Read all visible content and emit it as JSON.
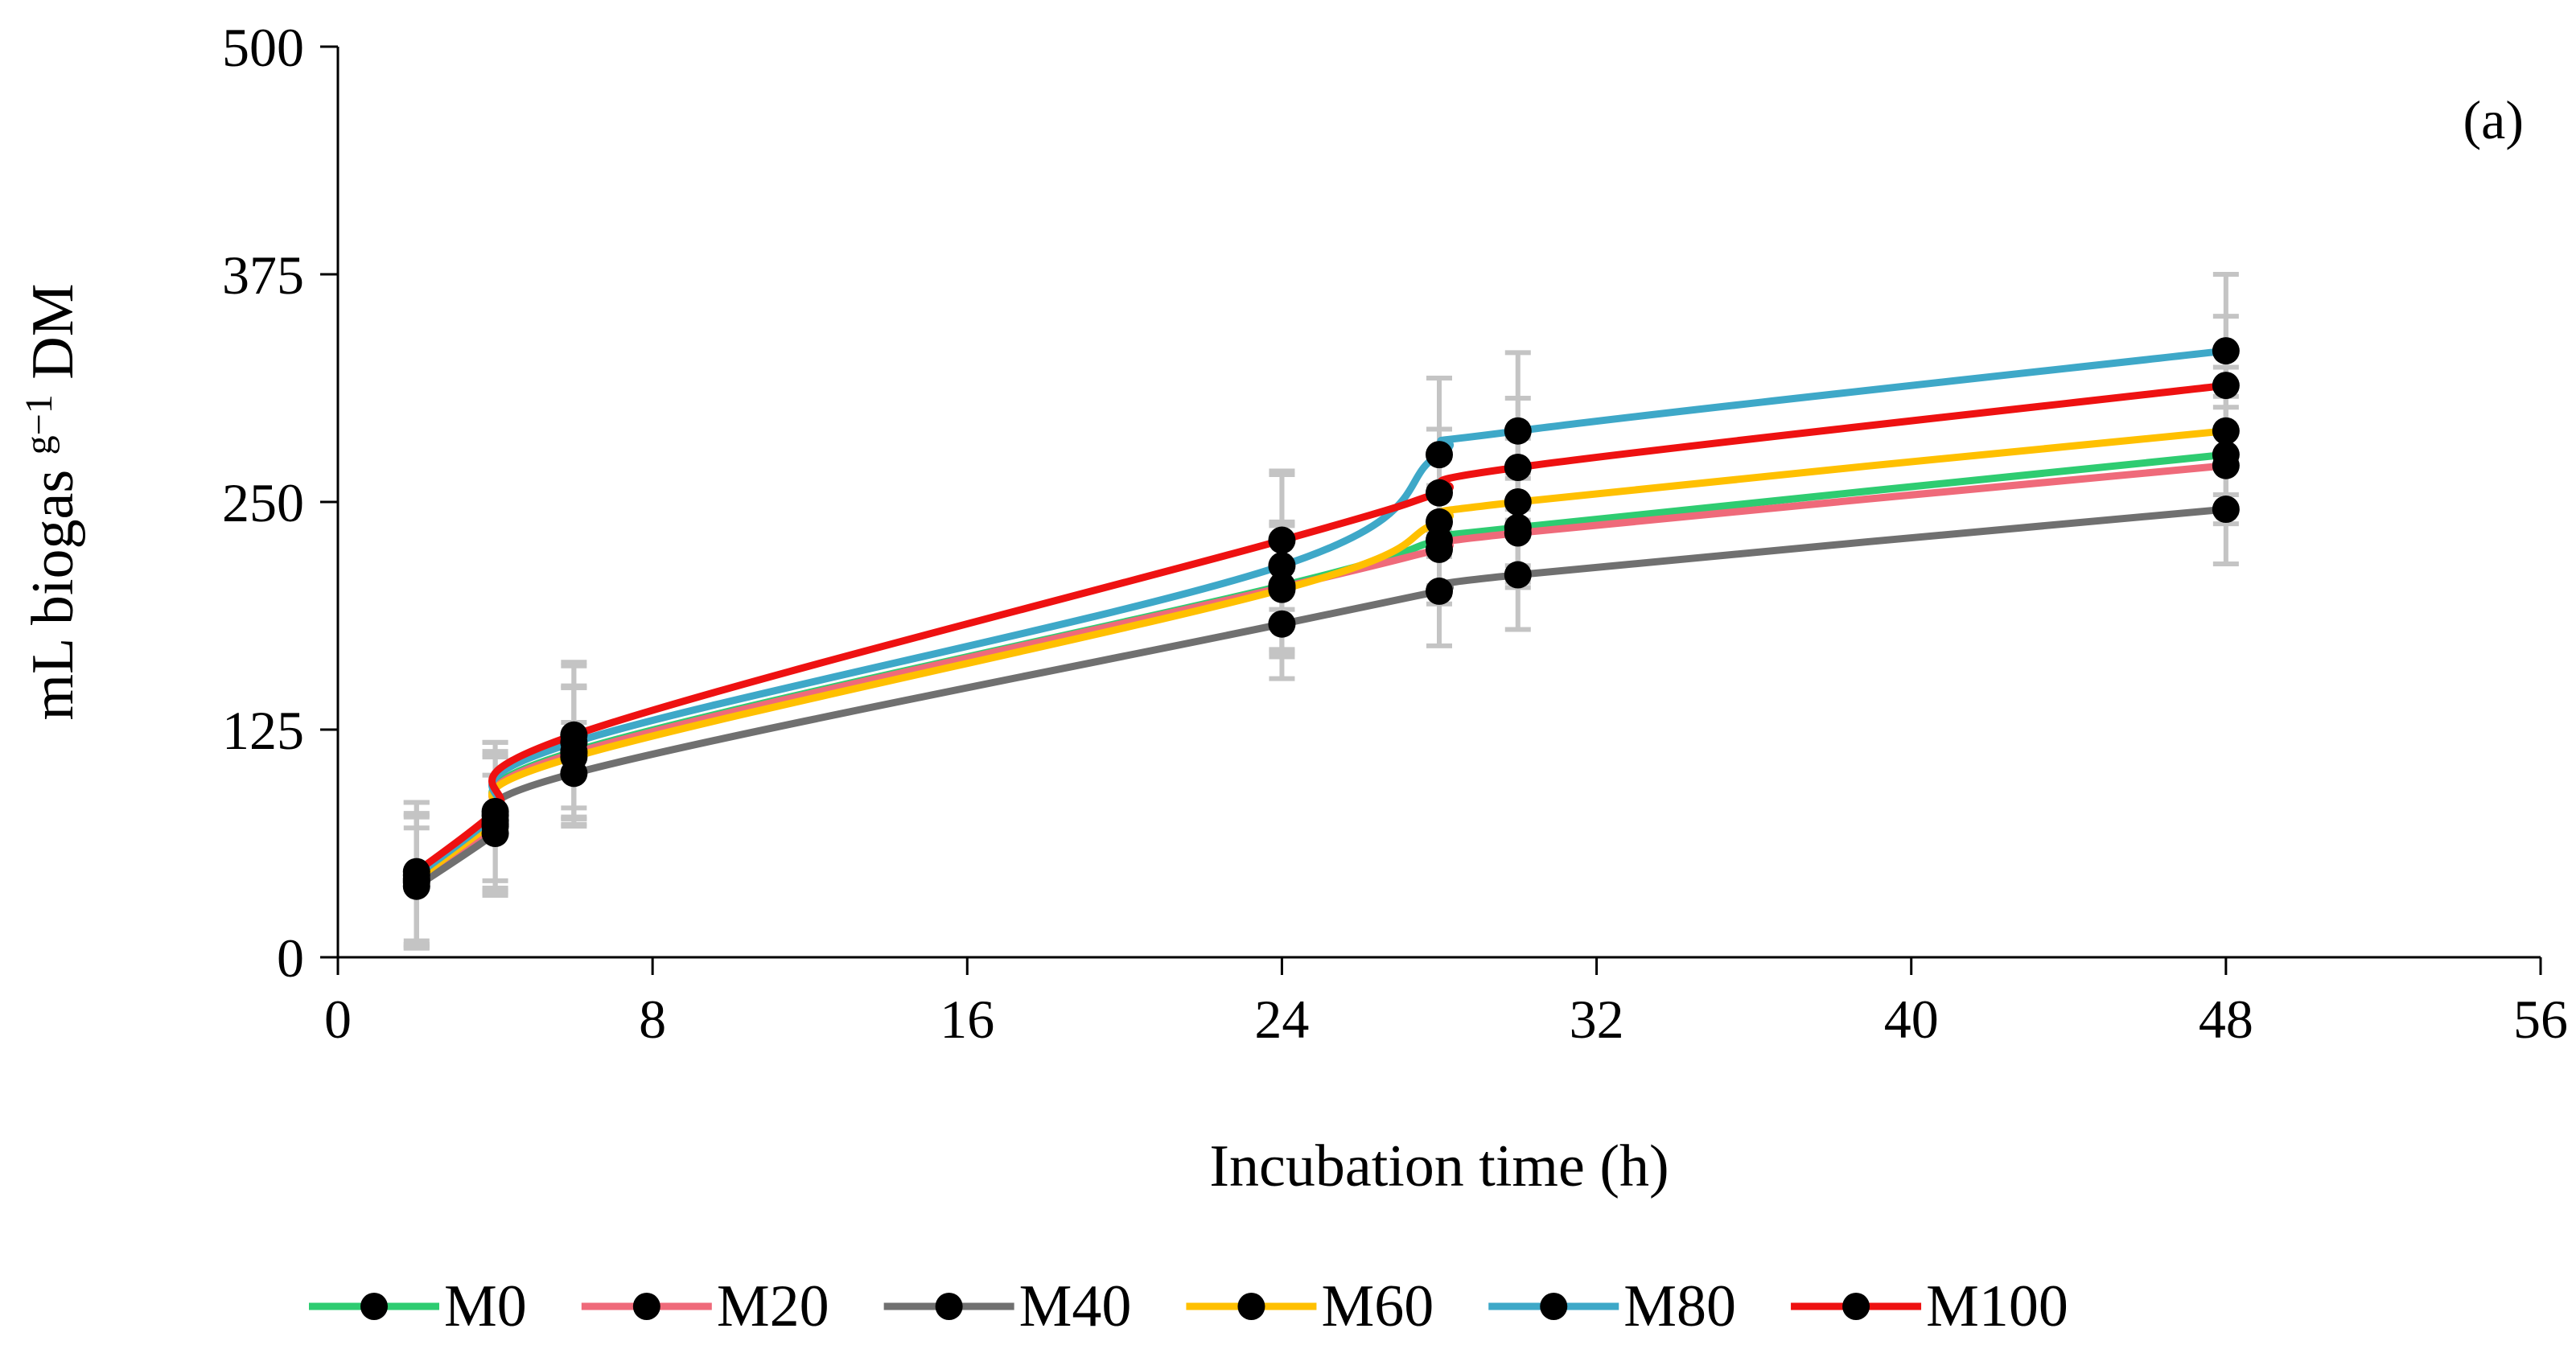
{
  "chart_data": {
    "type": "line",
    "panel_label": "(a)",
    "xlabel": "Incubation time (h)",
    "ylabel_main": "mL biogas ",
    "ylabel_sup": "g−1",
    "ylabel_tail": " DM",
    "xlim": [
      0,
      56
    ],
    "ylim": [
      0,
      500
    ],
    "xticks": [
      0,
      8,
      16,
      24,
      32,
      40,
      48,
      56
    ],
    "yticks": [
      0,
      125,
      250,
      375,
      500
    ],
    "x": [
      2,
      4,
      6,
      24,
      28,
      30,
      48
    ],
    "error_bar_color": "#c4c4c4",
    "marker_color": "#000000",
    "legend_position": "bottom",
    "series": [
      {
        "name": "M0",
        "color": "#2ecc71",
        "values": [
          42,
          73,
          113,
          204,
          229,
          236,
          276
        ],
        "errors": [
          36,
          38,
          36,
          35,
          30,
          30,
          32
        ]
      },
      {
        "name": "M20",
        "color": "#ef6a7a",
        "values": [
          41,
          72,
          112,
          203,
          224,
          233,
          270
        ],
        "errors": [
          36,
          38,
          36,
          35,
          30,
          30,
          32
        ]
      },
      {
        "name": "M40",
        "color": "#707070",
        "values": [
          39,
          68,
          101,
          183,
          201,
          210,
          246
        ],
        "errors": [
          32,
          32,
          28,
          30,
          30,
          30,
          30
        ]
      },
      {
        "name": "M60",
        "color": "#ffc000",
        "values": [
          43,
          75,
          110,
          202,
          239,
          250,
          289
        ],
        "errors": [
          36,
          38,
          38,
          35,
          35,
          35,
          35
        ]
      },
      {
        "name": "M80",
        "color": "#3ea8c8",
        "values": [
          45,
          78,
          118,
          215,
          276,
          289,
          333
        ],
        "errors": [
          40,
          40,
          42,
          50,
          42,
          43,
          42
        ]
      },
      {
        "name": "M100",
        "color": "#ee1111",
        "values": [
          47,
          80,
          122,
          229,
          255,
          269,
          314
        ],
        "errors": [
          38,
          38,
          40,
          38,
          35,
          38,
          38
        ]
      }
    ]
  }
}
